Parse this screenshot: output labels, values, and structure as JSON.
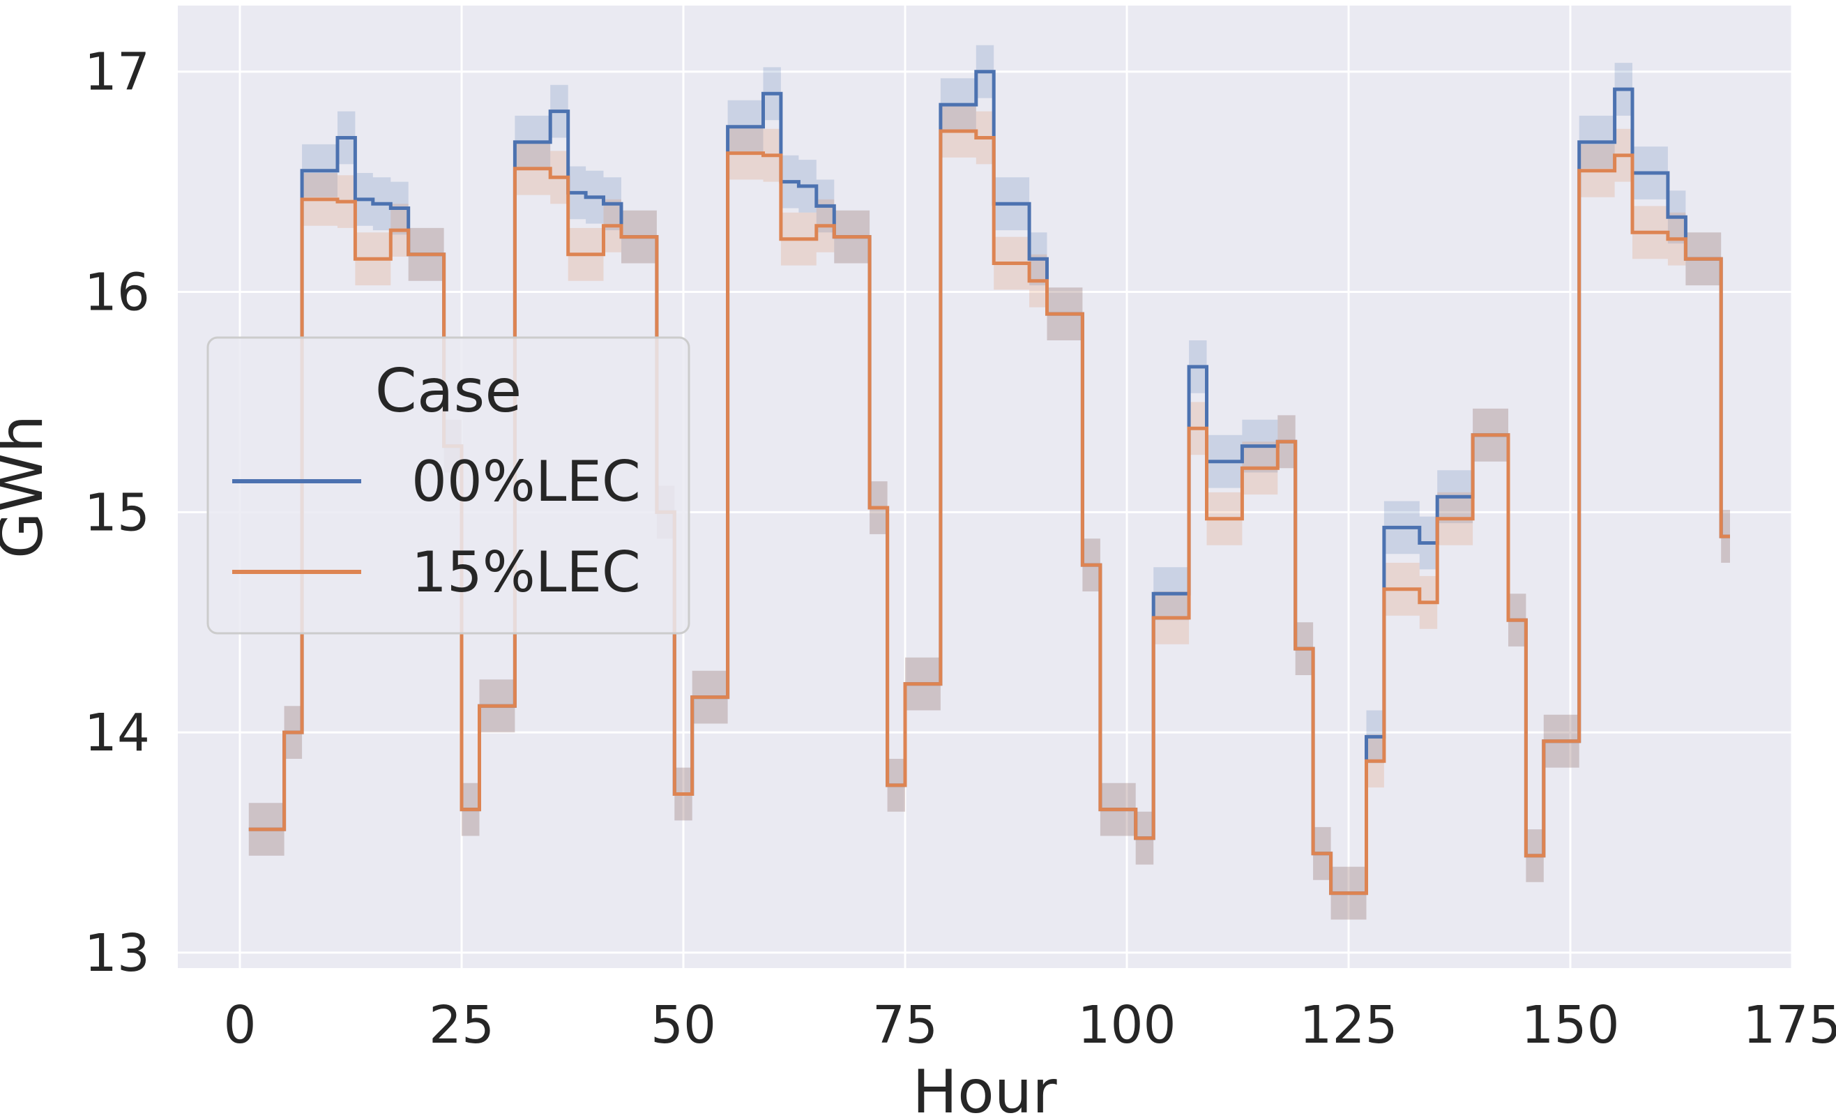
{
  "chart_data": {
    "type": "line",
    "xlabel": "Hour",
    "ylabel": "GWh",
    "xlim": [
      -7,
      175
    ],
    "ylim": [
      12.93,
      17.3
    ],
    "xticks": [
      0,
      25,
      50,
      75,
      100,
      125,
      150,
      175
    ],
    "yticks": [
      13,
      14,
      15,
      16,
      17
    ],
    "grid": true,
    "drawstyle": "steps-post",
    "legend": {
      "title": "Case",
      "placement": "center-left"
    },
    "series": [
      {
        "name": "00%LEC",
        "color": "#4c72b0",
        "x": [
          1,
          3,
          5,
          7,
          9,
          11,
          13,
          15,
          17,
          19,
          21,
          23,
          25,
          27,
          29,
          31,
          33,
          35,
          37,
          39,
          41,
          43,
          45,
          47,
          49,
          51,
          53,
          55,
          57,
          59,
          61,
          63,
          65,
          67,
          69,
          71,
          73,
          75,
          77,
          79,
          81,
          83,
          85,
          87,
          89,
          91,
          93,
          95,
          97,
          99,
          101,
          103,
          105,
          107,
          109,
          111,
          113,
          115,
          117,
          119,
          121,
          123,
          125,
          127,
          129,
          131,
          133,
          135,
          137,
          139,
          141,
          143,
          145,
          147,
          149,
          151,
          153,
          155,
          157,
          159,
          161,
          163,
          165,
          167,
          168
        ],
        "values": [
          13.56,
          13.56,
          14.0,
          16.55,
          16.55,
          16.7,
          16.42,
          16.4,
          16.38,
          16.17,
          16.17,
          15.3,
          13.65,
          14.12,
          14.12,
          16.68,
          16.68,
          16.82,
          16.45,
          16.43,
          16.4,
          16.25,
          16.25,
          15.0,
          13.72,
          14.16,
          14.16,
          16.75,
          16.75,
          16.9,
          16.5,
          16.48,
          16.39,
          16.25,
          16.25,
          15.02,
          13.76,
          14.22,
          14.22,
          16.85,
          16.85,
          17.0,
          16.4,
          16.4,
          16.15,
          15.9,
          15.9,
          14.76,
          13.65,
          13.65,
          13.52,
          14.63,
          14.63,
          15.66,
          15.23,
          15.23,
          15.3,
          15.3,
          15.32,
          14.38,
          13.45,
          13.27,
          13.27,
          13.98,
          14.93,
          14.93,
          14.86,
          15.07,
          15.07,
          15.35,
          15.35,
          14.51,
          13.44,
          13.96,
          13.96,
          16.68,
          16.68,
          16.92,
          16.54,
          16.54,
          16.34,
          16.15,
          16.15,
          14.89,
          14.89
        ]
      },
      {
        "name": "15%LEC",
        "color": "#dd8452",
        "x": [
          1,
          3,
          5,
          7,
          9,
          11,
          13,
          15,
          17,
          19,
          21,
          23,
          25,
          27,
          29,
          31,
          33,
          35,
          37,
          39,
          41,
          43,
          45,
          47,
          49,
          51,
          53,
          55,
          57,
          59,
          61,
          63,
          65,
          67,
          69,
          71,
          73,
          75,
          77,
          79,
          81,
          83,
          85,
          87,
          89,
          91,
          93,
          95,
          97,
          99,
          101,
          103,
          105,
          107,
          109,
          111,
          113,
          115,
          117,
          119,
          121,
          123,
          125,
          127,
          129,
          131,
          133,
          135,
          137,
          139,
          141,
          143,
          145,
          147,
          149,
          151,
          153,
          155,
          157,
          159,
          161,
          163,
          165,
          167,
          168
        ],
        "values": [
          13.56,
          13.56,
          14.0,
          16.42,
          16.42,
          16.41,
          16.15,
          16.15,
          16.28,
          16.17,
          16.17,
          15.3,
          13.65,
          14.12,
          14.12,
          16.56,
          16.56,
          16.52,
          16.17,
          16.17,
          16.3,
          16.25,
          16.25,
          15.0,
          13.72,
          14.16,
          14.16,
          16.63,
          16.63,
          16.62,
          16.24,
          16.24,
          16.3,
          16.25,
          16.25,
          15.02,
          13.76,
          14.22,
          14.22,
          16.73,
          16.73,
          16.7,
          16.13,
          16.13,
          16.05,
          15.9,
          15.9,
          14.76,
          13.65,
          13.65,
          13.52,
          14.52,
          14.52,
          15.38,
          14.97,
          14.97,
          15.2,
          15.2,
          15.32,
          14.38,
          13.45,
          13.27,
          13.27,
          13.87,
          14.65,
          14.65,
          14.59,
          14.97,
          14.97,
          15.35,
          15.35,
          14.51,
          13.44,
          13.96,
          13.96,
          16.55,
          16.55,
          16.62,
          16.27,
          16.27,
          16.24,
          16.15,
          16.15,
          14.89,
          14.89
        ]
      }
    ]
  }
}
